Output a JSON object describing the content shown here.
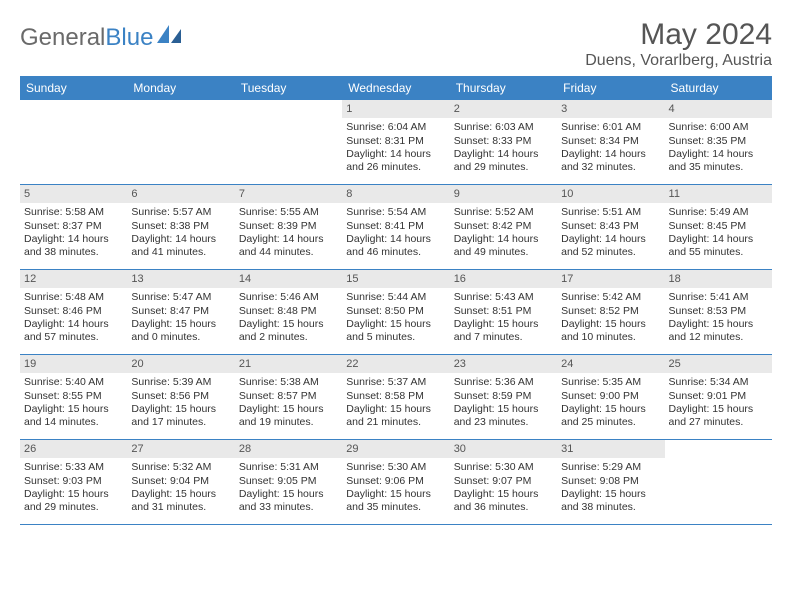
{
  "brand": {
    "part1": "General",
    "part2": "Blue"
  },
  "title": "May 2024",
  "location": "Duens, Vorarlberg, Austria",
  "colors": {
    "header_bg": "#3b82c4",
    "header_text": "#ffffff",
    "daynum_bg": "#e9e9e9",
    "week_border": "#3b82c4",
    "body_text": "#333333",
    "title_text": "#555555",
    "logo_gray": "#6a6a6a",
    "logo_blue": "#3b82c4",
    "background": "#ffffff"
  },
  "fonts": {
    "title_size_pt": 22,
    "location_size_pt": 12,
    "dayhead_size_pt": 9,
    "cell_size_pt": 8
  },
  "day_headers": [
    "Sunday",
    "Monday",
    "Tuesday",
    "Wednesday",
    "Thursday",
    "Friday",
    "Saturday"
  ],
  "weeks": [
    [
      {
        "n": "",
        "sunrise": "",
        "sunset": "",
        "daylight": ""
      },
      {
        "n": "",
        "sunrise": "",
        "sunset": "",
        "daylight": ""
      },
      {
        "n": "",
        "sunrise": "",
        "sunset": "",
        "daylight": ""
      },
      {
        "n": "1",
        "sunrise": "Sunrise: 6:04 AM",
        "sunset": "Sunset: 8:31 PM",
        "daylight": "Daylight: 14 hours and 26 minutes."
      },
      {
        "n": "2",
        "sunrise": "Sunrise: 6:03 AM",
        "sunset": "Sunset: 8:33 PM",
        "daylight": "Daylight: 14 hours and 29 minutes."
      },
      {
        "n": "3",
        "sunrise": "Sunrise: 6:01 AM",
        "sunset": "Sunset: 8:34 PM",
        "daylight": "Daylight: 14 hours and 32 minutes."
      },
      {
        "n": "4",
        "sunrise": "Sunrise: 6:00 AM",
        "sunset": "Sunset: 8:35 PM",
        "daylight": "Daylight: 14 hours and 35 minutes."
      }
    ],
    [
      {
        "n": "5",
        "sunrise": "Sunrise: 5:58 AM",
        "sunset": "Sunset: 8:37 PM",
        "daylight": "Daylight: 14 hours and 38 minutes."
      },
      {
        "n": "6",
        "sunrise": "Sunrise: 5:57 AM",
        "sunset": "Sunset: 8:38 PM",
        "daylight": "Daylight: 14 hours and 41 minutes."
      },
      {
        "n": "7",
        "sunrise": "Sunrise: 5:55 AM",
        "sunset": "Sunset: 8:39 PM",
        "daylight": "Daylight: 14 hours and 44 minutes."
      },
      {
        "n": "8",
        "sunrise": "Sunrise: 5:54 AM",
        "sunset": "Sunset: 8:41 PM",
        "daylight": "Daylight: 14 hours and 46 minutes."
      },
      {
        "n": "9",
        "sunrise": "Sunrise: 5:52 AM",
        "sunset": "Sunset: 8:42 PM",
        "daylight": "Daylight: 14 hours and 49 minutes."
      },
      {
        "n": "10",
        "sunrise": "Sunrise: 5:51 AM",
        "sunset": "Sunset: 8:43 PM",
        "daylight": "Daylight: 14 hours and 52 minutes."
      },
      {
        "n": "11",
        "sunrise": "Sunrise: 5:49 AM",
        "sunset": "Sunset: 8:45 PM",
        "daylight": "Daylight: 14 hours and 55 minutes."
      }
    ],
    [
      {
        "n": "12",
        "sunrise": "Sunrise: 5:48 AM",
        "sunset": "Sunset: 8:46 PM",
        "daylight": "Daylight: 14 hours and 57 minutes."
      },
      {
        "n": "13",
        "sunrise": "Sunrise: 5:47 AM",
        "sunset": "Sunset: 8:47 PM",
        "daylight": "Daylight: 15 hours and 0 minutes."
      },
      {
        "n": "14",
        "sunrise": "Sunrise: 5:46 AM",
        "sunset": "Sunset: 8:48 PM",
        "daylight": "Daylight: 15 hours and 2 minutes."
      },
      {
        "n": "15",
        "sunrise": "Sunrise: 5:44 AM",
        "sunset": "Sunset: 8:50 PM",
        "daylight": "Daylight: 15 hours and 5 minutes."
      },
      {
        "n": "16",
        "sunrise": "Sunrise: 5:43 AM",
        "sunset": "Sunset: 8:51 PM",
        "daylight": "Daylight: 15 hours and 7 minutes."
      },
      {
        "n": "17",
        "sunrise": "Sunrise: 5:42 AM",
        "sunset": "Sunset: 8:52 PM",
        "daylight": "Daylight: 15 hours and 10 minutes."
      },
      {
        "n": "18",
        "sunrise": "Sunrise: 5:41 AM",
        "sunset": "Sunset: 8:53 PM",
        "daylight": "Daylight: 15 hours and 12 minutes."
      }
    ],
    [
      {
        "n": "19",
        "sunrise": "Sunrise: 5:40 AM",
        "sunset": "Sunset: 8:55 PM",
        "daylight": "Daylight: 15 hours and 14 minutes."
      },
      {
        "n": "20",
        "sunrise": "Sunrise: 5:39 AM",
        "sunset": "Sunset: 8:56 PM",
        "daylight": "Daylight: 15 hours and 17 minutes."
      },
      {
        "n": "21",
        "sunrise": "Sunrise: 5:38 AM",
        "sunset": "Sunset: 8:57 PM",
        "daylight": "Daylight: 15 hours and 19 minutes."
      },
      {
        "n": "22",
        "sunrise": "Sunrise: 5:37 AM",
        "sunset": "Sunset: 8:58 PM",
        "daylight": "Daylight: 15 hours and 21 minutes."
      },
      {
        "n": "23",
        "sunrise": "Sunrise: 5:36 AM",
        "sunset": "Sunset: 8:59 PM",
        "daylight": "Daylight: 15 hours and 23 minutes."
      },
      {
        "n": "24",
        "sunrise": "Sunrise: 5:35 AM",
        "sunset": "Sunset: 9:00 PM",
        "daylight": "Daylight: 15 hours and 25 minutes."
      },
      {
        "n": "25",
        "sunrise": "Sunrise: 5:34 AM",
        "sunset": "Sunset: 9:01 PM",
        "daylight": "Daylight: 15 hours and 27 minutes."
      }
    ],
    [
      {
        "n": "26",
        "sunrise": "Sunrise: 5:33 AM",
        "sunset": "Sunset: 9:03 PM",
        "daylight": "Daylight: 15 hours and 29 minutes."
      },
      {
        "n": "27",
        "sunrise": "Sunrise: 5:32 AM",
        "sunset": "Sunset: 9:04 PM",
        "daylight": "Daylight: 15 hours and 31 minutes."
      },
      {
        "n": "28",
        "sunrise": "Sunrise: 5:31 AM",
        "sunset": "Sunset: 9:05 PM",
        "daylight": "Daylight: 15 hours and 33 minutes."
      },
      {
        "n": "29",
        "sunrise": "Sunrise: 5:30 AM",
        "sunset": "Sunset: 9:06 PM",
        "daylight": "Daylight: 15 hours and 35 minutes."
      },
      {
        "n": "30",
        "sunrise": "Sunrise: 5:30 AM",
        "sunset": "Sunset: 9:07 PM",
        "daylight": "Daylight: 15 hours and 36 minutes."
      },
      {
        "n": "31",
        "sunrise": "Sunrise: 5:29 AM",
        "sunset": "Sunset: 9:08 PM",
        "daylight": "Daylight: 15 hours and 38 minutes."
      },
      {
        "n": "",
        "sunrise": "",
        "sunset": "",
        "daylight": ""
      }
    ]
  ]
}
